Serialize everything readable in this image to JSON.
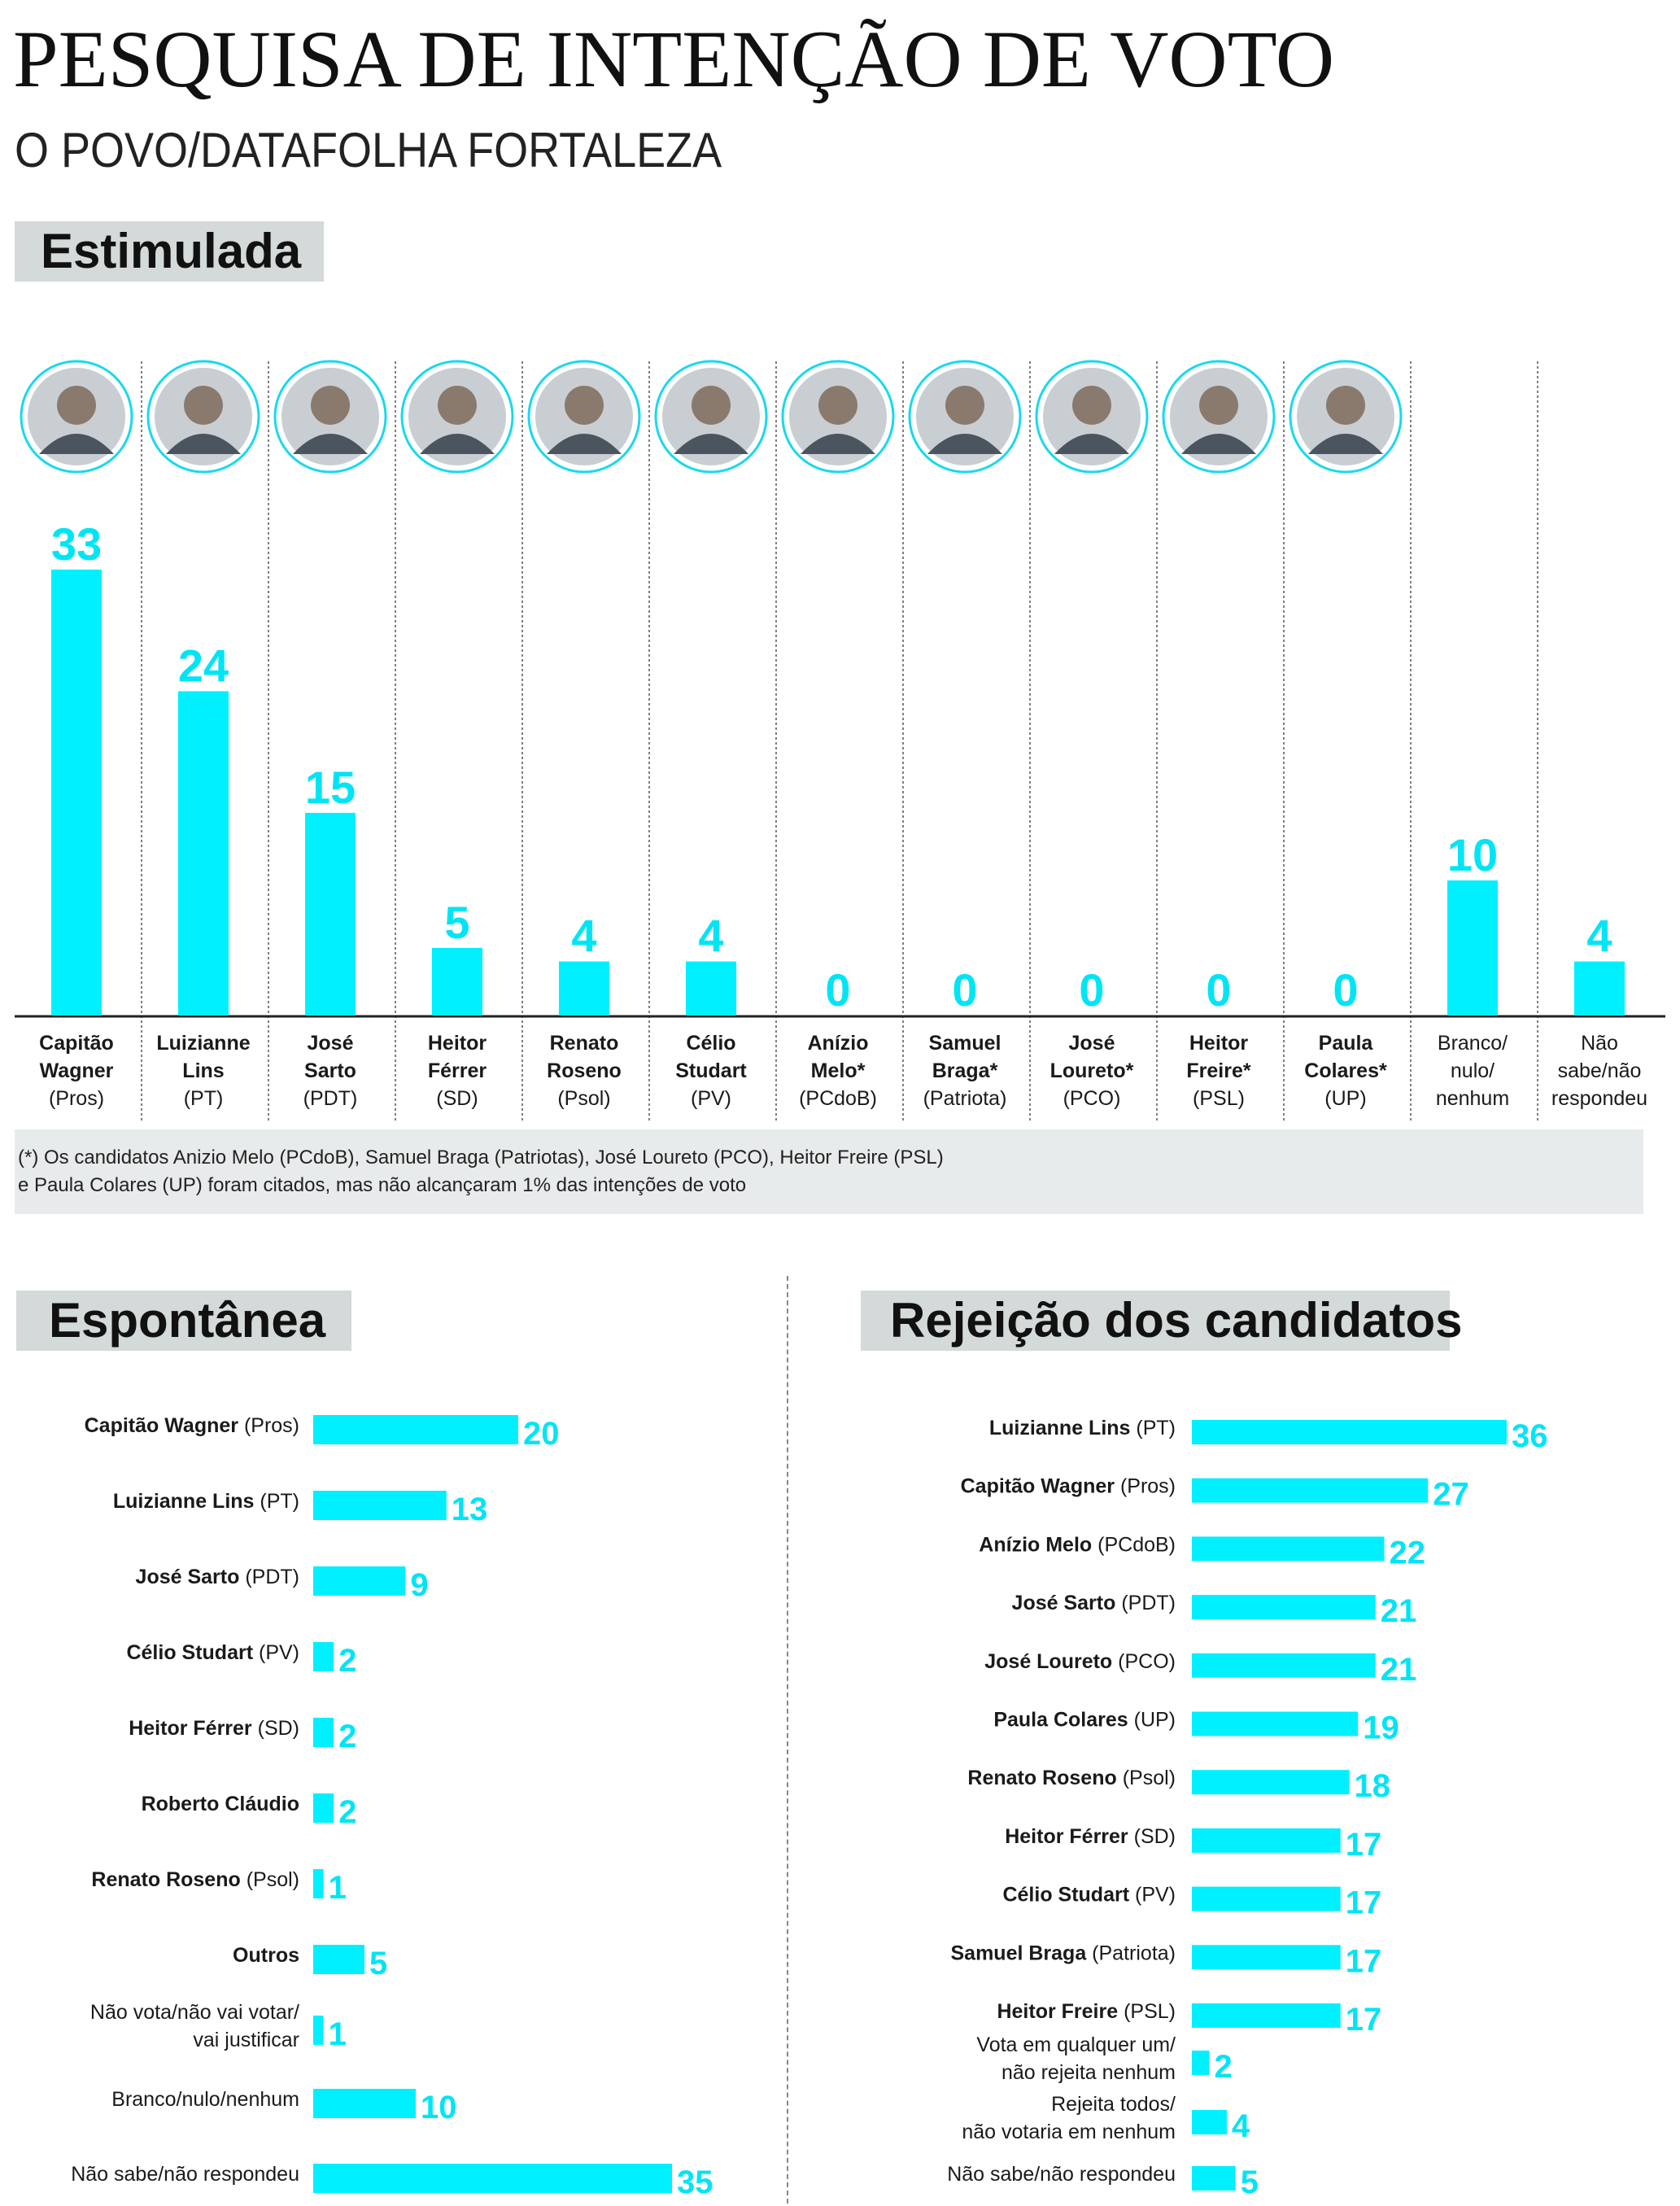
{
  "header": {
    "title": "PESQUISA DE INTENÇÃO DE VOTO",
    "subtitle": "O POVO/DATAFOLHA FORTALEZA"
  },
  "sections": {
    "estimulada": "Estimulada",
    "espontanea": "Espontânea",
    "rejeicao": "Rejeição dos candidatos"
  },
  "note": {
    "line1": "(*) Os candidatos Anizio Melo (PCdoB), Samuel Braga (Patriotas), José Loureto (PCO), Heitor Freire (PSL)",
    "line2": "e Paula Colares (UP) foram citados, mas não alcançaram 1% das intenções de voto"
  },
  "colors": {
    "bar": "#00f0ff",
    "value": "#00e5f5",
    "label_bg": "#d4d9d9",
    "note_bg": "#e8ebeb",
    "ring": "#19d9ec"
  },
  "chart_data": [
    {
      "type": "bar",
      "title": "Estimulada",
      "ylim": [
        0,
        33
      ],
      "categories": [
        {
          "name_lines": [
            "Capitão",
            "Wagner"
          ],
          "party": "(Pros)",
          "value": 33,
          "photo": true
        },
        {
          "name_lines": [
            "Luizianne",
            "Lins"
          ],
          "party": "(PT)",
          "value": 24,
          "photo": true
        },
        {
          "name_lines": [
            "José",
            "Sarto"
          ],
          "party": "(PDT)",
          "value": 15,
          "photo": true
        },
        {
          "name_lines": [
            "Heitor",
            "Férrer"
          ],
          "party": "(SD)",
          "value": 5,
          "photo": true
        },
        {
          "name_lines": [
            "Renato",
            "Roseno"
          ],
          "party": "(Psol)",
          "value": 4,
          "photo": true
        },
        {
          "name_lines": [
            "Célio",
            "Studart"
          ],
          "party": "(PV)",
          "value": 4,
          "photo": true
        },
        {
          "name_lines": [
            "Anízio",
            "Melo*"
          ],
          "party": "(PCdoB)",
          "value": 0,
          "photo": true
        },
        {
          "name_lines": [
            "Samuel",
            "Braga*"
          ],
          "party": "(Patriota)",
          "value": 0,
          "photo": true
        },
        {
          "name_lines": [
            "José",
            "Loureto*"
          ],
          "party": "(PCO)",
          "value": 0,
          "photo": true
        },
        {
          "name_lines": [
            "Heitor",
            "Freire*"
          ],
          "party": "(PSL)",
          "value": 0,
          "photo": true
        },
        {
          "name_lines": [
            "Paula",
            "Colares*"
          ],
          "party": "(UP)",
          "value": 0,
          "photo": true
        },
        {
          "name_lines": [],
          "party": "",
          "plain_lines": [
            "Branco/",
            "nulo/",
            "nenhum"
          ],
          "value": 10,
          "photo": false
        },
        {
          "name_lines": [],
          "party": "",
          "plain_lines": [
            "Não",
            "sabe/não",
            "respondeu"
          ],
          "value": 4,
          "photo": false
        }
      ]
    },
    {
      "type": "bar",
      "orientation": "horizontal",
      "title": "Espontânea",
      "rows": [
        {
          "bold": "Capitão Wagner",
          "rest": " (Pros)",
          "value": 20
        },
        {
          "bold": "Luizianne Lins",
          "rest": " (PT)",
          "value": 13
        },
        {
          "bold": "José Sarto",
          "rest": " (PDT)",
          "value": 9
        },
        {
          "bold": "Célio Studart",
          "rest": " (PV)",
          "value": 2
        },
        {
          "bold": "Heitor Férrer",
          "rest": " (SD)",
          "value": 2
        },
        {
          "bold": "Roberto Cláudio",
          "rest": "",
          "value": 2
        },
        {
          "bold": "Renato Roseno",
          "rest": " (Psol)",
          "value": 1
        },
        {
          "bold": "Outros",
          "rest": "",
          "value": 5
        },
        {
          "lines": [
            "Não vota/não vai votar/",
            "vai justificar"
          ],
          "value": 1
        },
        {
          "lines": [
            "Branco/nulo/nenhum"
          ],
          "value": 10
        },
        {
          "lines": [
            "Não sabe/não respondeu"
          ],
          "value": 35
        }
      ]
    },
    {
      "type": "bar",
      "orientation": "horizontal",
      "title": "Rejeição dos candidatos",
      "rows": [
        {
          "bold": "Luizianne Lins",
          "rest": " (PT)",
          "value": 36
        },
        {
          "bold": "Capitão Wagner",
          "rest": " (Pros)",
          "value": 27
        },
        {
          "bold": "Anízio Melo",
          "rest": " (PCdoB)",
          "value": 22
        },
        {
          "bold": "José Sarto",
          "rest": " (PDT)",
          "value": 21
        },
        {
          "bold": "José Loureto",
          "rest": " (PCO)",
          "value": 21
        },
        {
          "bold": "Paula Colares",
          "rest": " (UP)",
          "value": 19
        },
        {
          "bold": "Renato Roseno",
          "rest": " (Psol)",
          "value": 18
        },
        {
          "bold": "Heitor Férrer",
          "rest": " (SD)",
          "value": 17
        },
        {
          "bold": "Célio Studart",
          "rest": " (PV)",
          "value": 17
        },
        {
          "bold": "Samuel Braga",
          "rest": " (Patriota)",
          "value": 17
        },
        {
          "bold": "Heitor Freire",
          "rest": " (PSL)",
          "value": 17
        },
        {
          "lines": [
            "Vota em qualquer um/",
            "não rejeita nenhum"
          ],
          "value": 2
        },
        {
          "lines": [
            "Rejeita todos/",
            "não votaria em nenhum"
          ],
          "value": 4
        },
        {
          "lines": [
            "Não sabe/não respondeu"
          ],
          "value": 5
        }
      ]
    }
  ]
}
